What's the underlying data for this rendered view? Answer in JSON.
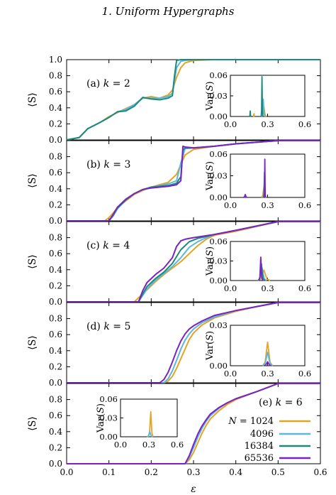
{
  "header": {
    "running_title": "1.   Uniform Hypergraphs"
  },
  "colors": {
    "N1024": "#E6A323",
    "N4096": "#5AB7E0",
    "N16384": "#1B8A7A",
    "N65536": "#7B22C2"
  },
  "legend": {
    "entries": [
      {
        "label": "N = 1024",
        "key": "N1024"
      },
      {
        "label": "4096",
        "key": "N4096"
      },
      {
        "label": "16384",
        "key": "N16384"
      },
      {
        "label": "65536",
        "key": "N65536"
      }
    ]
  },
  "chart_data": [
    {
      "type": "line",
      "panel_label": "(a) k = 2",
      "ylabel": "⟨S⟩",
      "xlim": [
        0,
        0.6
      ],
      "ylim": [
        0,
        1.0
      ],
      "yticks": [
        "0.0",
        "0.2",
        "0.4",
        "0.6",
        "0.8",
        "1.0"
      ],
      "series": [
        {
          "name": "N = 1024",
          "key": "N1024",
          "x": [
            0,
            0.03,
            0.05,
            0.08,
            0.1,
            0.12,
            0.14,
            0.16,
            0.18,
            0.2,
            0.22,
            0.24,
            0.25,
            0.26,
            0.27,
            0.28,
            0.3,
            0.35,
            0.4,
            0.5,
            0.6
          ],
          "y": [
            0,
            0.03,
            0.14,
            0.22,
            0.29,
            0.34,
            0.39,
            0.44,
            0.52,
            0.54,
            0.52,
            0.56,
            0.62,
            0.78,
            0.9,
            0.96,
            0.99,
            1,
            1,
            1,
            1
          ]
        },
        {
          "name": "4096",
          "key": "N4096",
          "x": [
            0,
            0.03,
            0.05,
            0.08,
            0.1,
            0.12,
            0.14,
            0.16,
            0.18,
            0.2,
            0.22,
            0.24,
            0.25,
            0.26,
            0.27,
            0.28,
            0.3,
            0.35,
            0.4,
            0.5,
            0.6
          ],
          "y": [
            0,
            0.03,
            0.14,
            0.22,
            0.28,
            0.35,
            0.38,
            0.44,
            0.52,
            0.52,
            0.52,
            0.54,
            0.58,
            0.9,
            0.98,
            0.99,
            1,
            1,
            1,
            1,
            1
          ]
        },
        {
          "name": "16384",
          "key": "N16384",
          "x": [
            0,
            0.03,
            0.05,
            0.08,
            0.1,
            0.12,
            0.14,
            0.16,
            0.18,
            0.2,
            0.22,
            0.24,
            0.25,
            0.255,
            0.26,
            0.27,
            0.3,
            0.35,
            0.4,
            0.5,
            0.6
          ],
          "y": [
            0,
            0.03,
            0.14,
            0.22,
            0.28,
            0.35,
            0.36,
            0.42,
            0.53,
            0.51,
            0.5,
            0.52,
            0.55,
            0.8,
            0.99,
            1,
            1,
            1,
            1,
            1,
            1
          ]
        }
      ],
      "inset": {
        "ylabel": "Var(S)",
        "xlim": [
          0,
          0.6
        ],
        "ylim": [
          0,
          0.06
        ],
        "xticks": [
          "0.0",
          "0.3",
          "0.6"
        ],
        "yticks": [
          "0.00",
          "0.03",
          "0.06"
        ],
        "peaks": [
          {
            "key": "N1024",
            "center": 0.27,
            "height": 0.014,
            "width": 0.02
          },
          {
            "key": "N4096",
            "center": 0.265,
            "height": 0.025,
            "width": 0.014
          },
          {
            "key": "N16384",
            "center": 0.255,
            "height": 0.058,
            "width": 0.007
          },
          {
            "key": "N16384",
            "center": 0.16,
            "height": 0.008,
            "width": 0.006
          },
          {
            "key": "N1024",
            "center": 0.19,
            "height": 0.004,
            "width": 0.006
          }
        ]
      }
    },
    {
      "type": "line",
      "panel_label": "(b) k = 3",
      "ylabel": "⟨S⟩",
      "xlim": [
        0,
        0.6
      ],
      "ylim": [
        0,
        1.0
      ],
      "yticks": [
        "0.0",
        "0.2",
        "0.4",
        "0.6",
        "0.8"
      ],
      "series": [
        {
          "name": "N = 1024",
          "key": "N1024",
          "x": [
            0,
            0.09,
            0.1,
            0.12,
            0.14,
            0.16,
            0.18,
            0.2,
            0.22,
            0.24,
            0.26,
            0.28,
            0.3,
            0.35,
            0.4,
            0.5,
            0.6
          ],
          "y": [
            0,
            0,
            0.04,
            0.16,
            0.25,
            0.33,
            0.38,
            0.42,
            0.45,
            0.48,
            0.58,
            0.82,
            0.89,
            0.93,
            0.96,
            1,
            1
          ]
        },
        {
          "name": "4096",
          "key": "N4096",
          "x": [
            0,
            0.1,
            0.11,
            0.12,
            0.14,
            0.16,
            0.18,
            0.2,
            0.22,
            0.24,
            0.26,
            0.27,
            0.28,
            0.3,
            0.35,
            0.4,
            0.5,
            0.6
          ],
          "y": [
            0,
            0,
            0.06,
            0.15,
            0.26,
            0.34,
            0.39,
            0.42,
            0.44,
            0.46,
            0.5,
            0.72,
            0.9,
            0.91,
            0.93,
            0.96,
            1,
            1
          ]
        },
        {
          "name": "16384",
          "key": "N16384",
          "x": [
            0,
            0.1,
            0.11,
            0.12,
            0.14,
            0.16,
            0.18,
            0.2,
            0.22,
            0.24,
            0.26,
            0.27,
            0.275,
            0.28,
            0.3,
            0.35,
            0.4,
            0.5,
            0.6
          ],
          "y": [
            0,
            0,
            0.07,
            0.16,
            0.26,
            0.34,
            0.39,
            0.42,
            0.43,
            0.44,
            0.47,
            0.55,
            0.88,
            0.91,
            0.91,
            0.93,
            0.96,
            1,
            1
          ]
        },
        {
          "name": "65536",
          "key": "N65536",
          "x": [
            0,
            0.1,
            0.11,
            0.12,
            0.14,
            0.16,
            0.18,
            0.2,
            0.22,
            0.24,
            0.26,
            0.27,
            0.275,
            0.28,
            0.3,
            0.35,
            0.4,
            0.5,
            0.6
          ],
          "y": [
            0,
            0,
            0.08,
            0.17,
            0.27,
            0.34,
            0.39,
            0.41,
            0.42,
            0.43,
            0.45,
            0.5,
            0.93,
            0.92,
            0.91,
            0.93,
            0.96,
            1,
            1
          ]
        }
      ],
      "inset": {
        "ylabel": "Var(S)",
        "xlim": [
          0,
          0.6
        ],
        "ylim": [
          0,
          0.06
        ],
        "xticks": [
          "0.0",
          "0.3",
          "0.6"
        ],
        "yticks": [
          "0.00",
          "0.03",
          "0.06"
        ],
        "peaks": [
          {
            "key": "N1024",
            "center": 0.27,
            "height": 0.014,
            "width": 0.02
          },
          {
            "key": "N4096",
            "center": 0.275,
            "height": 0.022,
            "width": 0.012
          },
          {
            "key": "N16384",
            "center": 0.275,
            "height": 0.035,
            "width": 0.008
          },
          {
            "key": "N65536",
            "center": 0.278,
            "height": 0.053,
            "width": 0.005
          },
          {
            "key": "N65536",
            "center": 0.12,
            "height": 0.004,
            "width": 0.015
          }
        ]
      }
    },
    {
      "type": "line",
      "panel_label": "(c) k = 4",
      "ylabel": "⟨S⟩",
      "xlim": [
        0,
        0.6
      ],
      "ylim": [
        0,
        1.0
      ],
      "yticks": [
        "0.0",
        "0.2",
        "0.4",
        "0.6",
        "0.8"
      ],
      "series": [
        {
          "name": "N = 1024",
          "key": "N1024",
          "x": [
            0,
            0.16,
            0.17,
            0.19,
            0.21,
            0.23,
            0.25,
            0.27,
            0.29,
            0.31,
            0.33,
            0.35,
            0.4,
            0.5,
            0.6
          ],
          "y": [
            0,
            0,
            0.05,
            0.15,
            0.25,
            0.34,
            0.42,
            0.5,
            0.6,
            0.7,
            0.78,
            0.83,
            0.88,
            1,
            1
          ]
        },
        {
          "name": "4096",
          "key": "N4096",
          "x": [
            0,
            0.17,
            0.18,
            0.19,
            0.21,
            0.23,
            0.25,
            0.27,
            0.29,
            0.31,
            0.33,
            0.35,
            0.4,
            0.5,
            0.6
          ],
          "y": [
            0,
            0,
            0.08,
            0.16,
            0.27,
            0.35,
            0.44,
            0.55,
            0.68,
            0.75,
            0.8,
            0.84,
            0.89,
            1,
            1
          ]
        },
        {
          "name": "16384",
          "key": "N16384",
          "x": [
            0,
            0.17,
            0.18,
            0.19,
            0.21,
            0.23,
            0.25,
            0.27,
            0.29,
            0.31,
            0.35,
            0.4,
            0.5,
            0.6
          ],
          "y": [
            0,
            0,
            0.1,
            0.19,
            0.29,
            0.37,
            0.48,
            0.65,
            0.75,
            0.79,
            0.84,
            0.89,
            1,
            1
          ]
        },
        {
          "name": "65536",
          "key": "N65536",
          "x": [
            0,
            0.17,
            0.18,
            0.19,
            0.21,
            0.23,
            0.25,
            0.26,
            0.27,
            0.28,
            0.3,
            0.35,
            0.4,
            0.5,
            0.6
          ],
          "y": [
            0,
            0,
            0.14,
            0.24,
            0.34,
            0.42,
            0.55,
            0.69,
            0.76,
            0.78,
            0.8,
            0.84,
            0.89,
            1,
            1
          ]
        }
      ],
      "inset": {
        "ylabel": "Var(S)",
        "xlim": [
          0,
          0.6
        ],
        "ylim": [
          0,
          0.06
        ],
        "xticks": [
          "0.0",
          "0.3",
          "0.6"
        ],
        "yticks": [
          "0.00",
          "0.03",
          "0.06"
        ],
        "peaks": [
          {
            "key": "N1024",
            "center": 0.27,
            "height": 0.016,
            "width": 0.05
          },
          {
            "key": "N4096",
            "center": 0.255,
            "height": 0.02,
            "width": 0.035
          },
          {
            "key": "N16384",
            "center": 0.25,
            "height": 0.026,
            "width": 0.025
          },
          {
            "key": "N65536",
            "center": 0.245,
            "height": 0.036,
            "width": 0.015
          }
        ]
      }
    },
    {
      "type": "line",
      "panel_label": "(d) k = 5",
      "ylabel": "⟨S⟩",
      "xlim": [
        0,
        0.6
      ],
      "ylim": [
        0,
        1.0
      ],
      "yticks": [
        "0.0",
        "0.2",
        "0.4",
        "0.6",
        "0.8"
      ],
      "series": [
        {
          "name": "N = 1024",
          "key": "N1024",
          "x": [
            0,
            0.23,
            0.24,
            0.25,
            0.26,
            0.27,
            0.28,
            0.29,
            0.3,
            0.32,
            0.35,
            0.4,
            0.45,
            0.5,
            0.6
          ],
          "y": [
            0,
            0,
            0.02,
            0.08,
            0.18,
            0.3,
            0.42,
            0.54,
            0.62,
            0.72,
            0.81,
            0.89,
            0.95,
            1,
            1
          ]
        },
        {
          "name": "4096",
          "key": "N4096",
          "x": [
            0,
            0.23,
            0.24,
            0.25,
            0.26,
            0.27,
            0.28,
            0.29,
            0.3,
            0.32,
            0.35,
            0.4,
            0.45,
            0.5,
            0.6
          ],
          "y": [
            0,
            0,
            0.05,
            0.15,
            0.28,
            0.42,
            0.53,
            0.61,
            0.67,
            0.75,
            0.82,
            0.9,
            0.95,
            1,
            1
          ]
        },
        {
          "name": "65536",
          "key": "N65536",
          "x": [
            0,
            0.22,
            0.23,
            0.24,
            0.25,
            0.26,
            0.27,
            0.28,
            0.29,
            0.3,
            0.32,
            0.35,
            0.4,
            0.45,
            0.5,
            0.6
          ],
          "y": [
            0,
            0,
            0.04,
            0.13,
            0.26,
            0.4,
            0.52,
            0.61,
            0.67,
            0.71,
            0.77,
            0.84,
            0.9,
            0.95,
            1,
            1
          ]
        }
      ],
      "inset": {
        "ylabel": "Var(S)",
        "xlim": [
          0,
          0.6
        ],
        "ylim": [
          0,
          0.03
        ],
        "xticks": [
          "0.0",
          "0.3",
          "0.6"
        ],
        "yticks": [
          "0.00",
          "0.03"
        ],
        "peaks": [
          {
            "key": "N1024",
            "center": 0.3,
            "height": 0.0175,
            "width": 0.04
          },
          {
            "key": "N4096",
            "center": 0.3,
            "height": 0.01,
            "width": 0.04
          },
          {
            "key": "N65536",
            "center": 0.3,
            "height": 0.003,
            "width": 0.03
          }
        ]
      }
    },
    {
      "type": "line",
      "panel_label": "(e) k = 6",
      "ylabel": "⟨S⟩",
      "xlabel": "ε",
      "xlim": [
        0,
        0.6
      ],
      "ylim": [
        0,
        1.0
      ],
      "yticks": [
        "0.0",
        "0.2",
        "0.4",
        "0.6",
        "0.8"
      ],
      "xticks": [
        "0.0",
        "0.1",
        "0.2",
        "0.3",
        "0.4",
        "0.5",
        "0.6"
      ],
      "series": [
        {
          "name": "N = 1024",
          "key": "N1024",
          "x": [
            0,
            0.28,
            0.29,
            0.3,
            0.31,
            0.32,
            0.33,
            0.34,
            0.36,
            0.38,
            0.4,
            0.45,
            0.5,
            0.6
          ],
          "y": [
            0,
            0,
            0.05,
            0.14,
            0.26,
            0.38,
            0.48,
            0.56,
            0.66,
            0.74,
            0.8,
            0.9,
            1,
            1
          ]
        },
        {
          "name": "4096",
          "key": "N4096",
          "x": [
            0,
            0.28,
            0.29,
            0.3,
            0.31,
            0.32,
            0.33,
            0.34,
            0.36,
            0.38,
            0.4,
            0.45,
            0.5,
            0.6
          ],
          "y": [
            0,
            0,
            0.08,
            0.2,
            0.33,
            0.44,
            0.53,
            0.6,
            0.69,
            0.76,
            0.81,
            0.9,
            1,
            1
          ]
        },
        {
          "name": "65536",
          "key": "N65536",
          "x": [
            0,
            0.28,
            0.29,
            0.3,
            0.31,
            0.32,
            0.33,
            0.34,
            0.36,
            0.38,
            0.4,
            0.45,
            0.5,
            0.6
          ],
          "y": [
            0,
            0,
            0.1,
            0.24,
            0.37,
            0.47,
            0.55,
            0.62,
            0.7,
            0.76,
            0.81,
            0.9,
            1,
            1
          ]
        }
      ],
      "inset": {
        "ylabel": "Var(S)",
        "xlim": [
          0,
          0.6
        ],
        "ylim": [
          0,
          0.06
        ],
        "xticks": [
          "0.0",
          "0.3",
          "0.6"
        ],
        "yticks": [
          "0.00",
          "0.03",
          "0.06"
        ],
        "peaks": [
          {
            "key": "N1024",
            "center": 0.32,
            "height": 0.04,
            "width": 0.025
          },
          {
            "key": "N4096",
            "center": 0.31,
            "height": 0.008,
            "width": 0.03
          }
        ]
      }
    }
  ]
}
